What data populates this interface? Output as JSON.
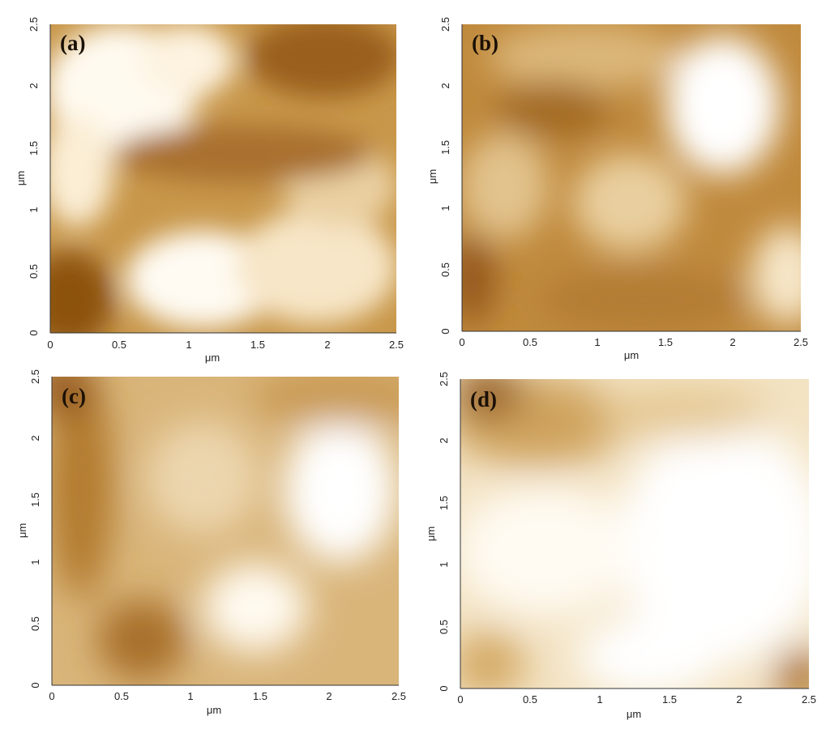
{
  "colormap": {
    "dark": "#8a4f0c",
    "mid": "#c99a4d",
    "light": "#ffffff"
  },
  "panels": [
    {
      "id": "a",
      "label": "(a)",
      "x_axis": {
        "label": "μm",
        "range": [
          0,
          2.5
        ],
        "ticks": [
          "0",
          "0.5",
          "1",
          "1.5",
          "2",
          "2.5"
        ]
      },
      "y_axis": {
        "label": "μm",
        "range": [
          0,
          2.5
        ],
        "ticks": [
          "0",
          "0.5",
          "1",
          "1.5",
          "2",
          "2.5"
        ]
      }
    },
    {
      "id": "b",
      "label": "(b)",
      "x_axis": {
        "label": "μm",
        "range": [
          0,
          2.5
        ],
        "ticks": [
          "0",
          "0.5",
          "1",
          "1.5",
          "2",
          "2.5"
        ]
      },
      "y_axis": {
        "label": "μm",
        "range": [
          0,
          2.5
        ],
        "ticks": [
          "0",
          "0.5",
          "1",
          "1.5",
          "2",
          "2.5"
        ]
      }
    },
    {
      "id": "c",
      "label": "(c)",
      "x_axis": {
        "label": "μm",
        "range": [
          0,
          2.5
        ],
        "ticks": [
          "0",
          "0.5",
          "1",
          "1.5",
          "2",
          "2.5"
        ]
      },
      "y_axis": {
        "label": "μm",
        "range": [
          0,
          2.5
        ],
        "ticks": [
          "0",
          "0.5",
          "1",
          "1.5",
          "2",
          "2.5"
        ]
      }
    },
    {
      "id": "d",
      "label": "(d)",
      "x_axis": {
        "label": "μm",
        "range": [
          0,
          2.5
        ],
        "ticks": [
          "0",
          "0.5",
          "1",
          "1.5",
          "2",
          "2.5"
        ]
      },
      "y_axis": {
        "label": "μm",
        "range": [
          0,
          2.5
        ],
        "ticks": [
          "0",
          "0.5",
          "1",
          "1.5",
          "2",
          "2.5"
        ]
      }
    }
  ]
}
